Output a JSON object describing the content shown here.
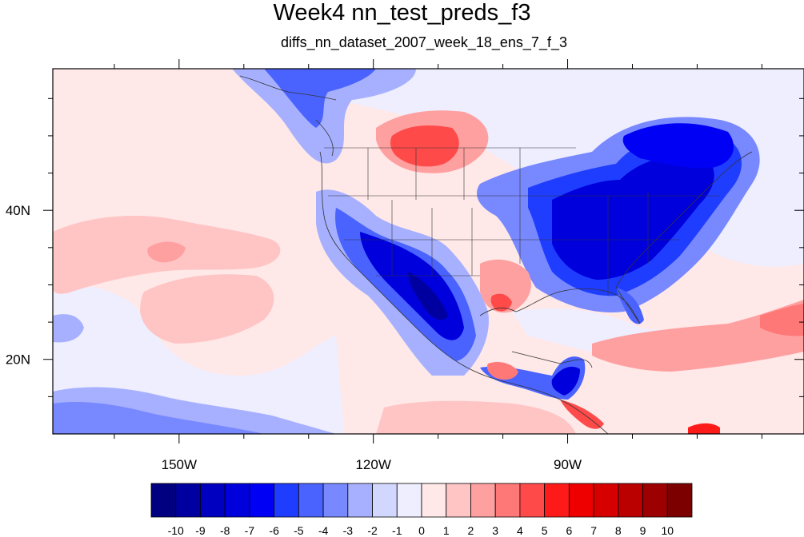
{
  "title": "Week4 nn_test_preds_f3",
  "subtitle": "diffs_nn_dataset_2007_week_18_ens_7_f_3",
  "map": {
    "lon_range": [
      -169.5,
      -53.5
    ],
    "lat_range": [
      10,
      59
    ],
    "lon_ticks": [
      {
        "value": -150,
        "label": "150W"
      },
      {
        "value": -120,
        "label": "120W"
      },
      {
        "value": -90,
        "label": "90W"
      }
    ],
    "lat_ticks": [
      {
        "value": 40,
        "label": "40N"
      },
      {
        "value": 20,
        "label": "20N"
      }
    ],
    "minor_lon_ticks": [
      -160,
      -140,
      -130,
      -110,
      -100,
      -80,
      -70,
      -60
    ],
    "minor_lat_ticks": [
      15,
      25,
      30,
      35,
      45,
      50,
      55
    ]
  },
  "colorbar": {
    "labels": [
      "-10",
      "-9",
      "-8",
      "-7",
      "-6",
      "-5",
      "-4",
      "-3",
      "-2",
      "-1",
      "0",
      "1",
      "2",
      "3",
      "4",
      "5",
      "6",
      "7",
      "8",
      "9",
      "10"
    ],
    "colors": [
      "#000080",
      "#0000a0",
      "#0000c0",
      "#0000dd",
      "#0000f5",
      "#1f3dff",
      "#4a63ff",
      "#7888ff",
      "#a6b0ff",
      "#d2d7ff",
      "#eeeeff",
      "#ffe8e8",
      "#ffc4c4",
      "#ffa0a0",
      "#ff7878",
      "#ff4a4a",
      "#ff1a1a",
      "#ee0000",
      "#d60000",
      "#bb0000",
      "#9c0000",
      "#7c0000"
    ]
  }
}
